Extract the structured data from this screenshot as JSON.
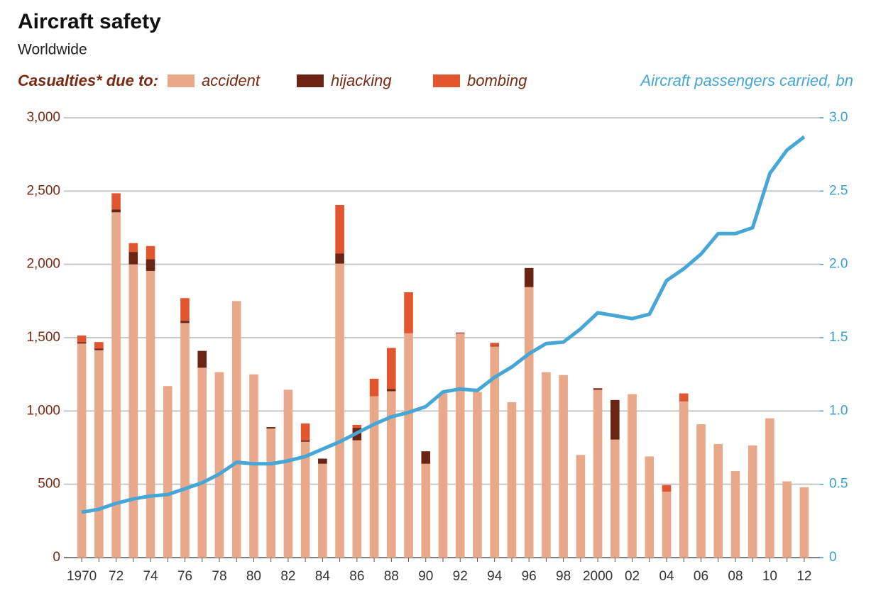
{
  "chart_data": {
    "type": "bar",
    "stacked": true,
    "title": "Aircraft safety",
    "subtitle": "Worldwide",
    "legend_title": "Casualties* due to:",
    "categories": [
      "1970",
      null,
      "72",
      null,
      "74",
      null,
      "76",
      null,
      "78",
      null,
      "80",
      null,
      "82",
      null,
      "84",
      null,
      "86",
      null,
      "88",
      null,
      "90",
      null,
      "92",
      null,
      "94",
      null,
      "96",
      null,
      "98",
      null,
      "2000",
      null,
      "02",
      null,
      "04",
      null,
      "06",
      null,
      "08",
      null,
      "10",
      null,
      "12"
    ],
    "series": [
      {
        "name": "accident",
        "color": "#e9a88a",
        "values": [
          1460,
          1415,
          2355,
          2000,
          1955,
          1170,
          1600,
          1295,
          1265,
          1750,
          1250,
          880,
          1145,
          790,
          640,
          2005,
          800,
          1100,
          1135,
          1530,
          640,
          1120,
          1530,
          1130,
          1440,
          1060,
          1845,
          1265,
          1245,
          700,
          1145,
          805,
          1115,
          690,
          450,
          1065,
          910,
          775,
          590,
          765,
          950,
          520,
          480
        ]
      },
      {
        "name": "hijacking",
        "color": "#6b2314",
        "values": [
          10,
          10,
          20,
          85,
          80,
          0,
          15,
          115,
          0,
          0,
          0,
          10,
          0,
          10,
          35,
          70,
          85,
          0,
          15,
          0,
          85,
          0,
          5,
          0,
          5,
          0,
          130,
          0,
          0,
          0,
          10,
          270,
          0,
          0,
          0,
          0,
          0,
          0,
          0,
          0,
          0,
          0,
          0
        ]
      },
      {
        "name": "bombing",
        "color": "#e2552f",
        "values": [
          45,
          45,
          110,
          60,
          90,
          0,
          155,
          0,
          0,
          0,
          0,
          0,
          0,
          115,
          0,
          330,
          20,
          120,
          280,
          280,
          0,
          0,
          0,
          0,
          20,
          0,
          0,
          0,
          0,
          0,
          0,
          0,
          0,
          0,
          45,
          55,
          0,
          0,
          0,
          0,
          0,
          0,
          0
        ]
      },
      {
        "name": "Aircraft passengers carried, bn",
        "type": "line",
        "axis": "y2",
        "color": "#46a6d6",
        "values": [
          0.31,
          0.33,
          0.37,
          0.4,
          0.42,
          0.43,
          0.47,
          0.51,
          0.57,
          0.65,
          0.64,
          0.64,
          0.66,
          0.69,
          0.74,
          0.79,
          0.85,
          0.91,
          0.96,
          0.99,
          1.03,
          1.13,
          1.15,
          1.14,
          1.23,
          1.3,
          1.39,
          1.46,
          1.47,
          1.56,
          1.67,
          1.65,
          1.63,
          1.66,
          1.89,
          1.97,
          2.07,
          2.21,
          2.21,
          2.25,
          2.62,
          2.78,
          2.87
        ]
      }
    ],
    "ylim": [
      0,
      3000
    ],
    "yticks": [
      0,
      500,
      {
        "value": 1000,
        "label": "1,000"
      },
      {
        "value": 1500,
        "label": "1,500"
      },
      {
        "value": 2000,
        "label": "2,000"
      },
      {
        "value": 2500,
        "label": "2,500"
      },
      {
        "value": 3000,
        "label": "3,000"
      }
    ],
    "y2lim": [
      0,
      3.0
    ],
    "y2ticks": [
      0,
      0.5,
      {
        "value": 1.0,
        "label": "1.0"
      },
      1.5,
      {
        "value": 2.0,
        "label": "2.0"
      },
      2.5,
      {
        "value": 3.0,
        "label": "3.0"
      }
    ],
    "grid": true
  }
}
